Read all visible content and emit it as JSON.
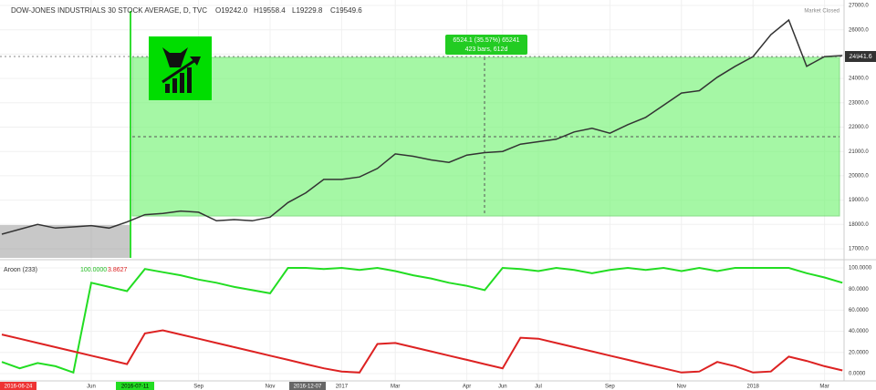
{
  "chart_data": [
    {
      "type": "line",
      "title": "DOW-JONES INDUSTRIALS 30 STOCK AVERAGE, D, TVC",
      "ohlc_labels": [
        "O19242.0",
        "H19558.4",
        "L19229.8",
        "C19549.6"
      ],
      "status": "Market Closed",
      "last_price_label": "24941.6",
      "measure_labels": [
        "6524.1 (35.57%) 65241",
        "423 bars, 612d"
      ],
      "series": [
        {
          "color": "#333333",
          "values": [
            17600,
            17800,
            18000,
            17850,
            17900,
            17950,
            17850,
            18100,
            18400,
            18450,
            18550,
            18500,
            18150,
            18200,
            18150,
            18300,
            18900,
            19300,
            19850,
            19850,
            19950,
            20300,
            20900,
            20800,
            20650,
            20550,
            20850,
            20950,
            21000,
            21300,
            21400,
            21500,
            21800,
            21950,
            21750,
            22100,
            22400,
            22900,
            23400,
            23500,
            24050,
            24500,
            24900,
            25800,
            26400,
            24500,
            24900,
            24940
          ]
        }
      ],
      "ylim": [
        16625,
        27225
      ],
      "yticks": [
        {
          "value": 17000,
          "label": "17000.0"
        },
        {
          "value": 18000,
          "label": "18000.0"
        },
        {
          "value": 19000,
          "label": "19000.0"
        },
        {
          "value": 20000,
          "label": "20000.0"
        },
        {
          "value": 21000,
          "label": "21000.0"
        },
        {
          "value": 22000,
          "label": "22000.0"
        },
        {
          "value": 23000,
          "label": "23000.0"
        },
        {
          "value": 24000,
          "label": "24000.0"
        },
        {
          "value": 25000,
          "label": "25000.0"
        },
        {
          "value": 26000,
          "label": "26000.0"
        },
        {
          "value": 27000,
          "label": "27000.0"
        }
      ]
    },
    {
      "type": "line",
      "title": "Aroon (233)",
      "legend_values": [
        "100.0000",
        "3.8627"
      ],
      "categories": [
        null,
        null,
        null,
        null,
        null,
        "Jun",
        null,
        null,
        null,
        null,
        null,
        "Sep",
        null,
        null,
        null,
        "Nov",
        null,
        null,
        null,
        "2017",
        null,
        null,
        "Mar",
        null,
        null,
        null,
        "Apr",
        null,
        "Jun",
        null,
        "Jul",
        null,
        null,
        null,
        "Sep",
        null,
        null,
        null,
        "Nov",
        null,
        null,
        null,
        "2018",
        null,
        null,
        null,
        "Mar",
        null
      ],
      "axis_badges": [
        "2016-06-24",
        "2016-07-11",
        "2016-12-07"
      ],
      "series": [
        {
          "color": "#22dd22",
          "values": [
            11,
            5,
            10,
            7,
            1,
            86,
            82,
            78,
            99,
            96,
            93,
            89,
            86,
            82,
            79,
            76,
            100,
            100,
            99,
            100,
            98,
            100,
            97,
            93,
            90,
            86,
            83,
            79,
            100,
            99,
            97,
            100,
            98,
            95,
            98,
            100,
            98,
            100,
            97,
            100,
            97,
            100,
            100,
            100,
            100,
            95,
            91,
            86
          ]
        },
        {
          "color": "#dd2222",
          "values": [
            37,
            33,
            29,
            25,
            21,
            17,
            13,
            9,
            38,
            41,
            37,
            33,
            29,
            25,
            21,
            17,
            13,
            9,
            5,
            2,
            1,
            28,
            29,
            25,
            21,
            17,
            13,
            9,
            5,
            34,
            33,
            29,
            25,
            21,
            17,
            13,
            9,
            5,
            1,
            2,
            11,
            7,
            1,
            2,
            16,
            12,
            7,
            3
          ]
        }
      ],
      "ylim": [
        -6.9,
        105.2
      ],
      "yticks": [
        {
          "value": 0,
          "label": "0.0000"
        },
        {
          "value": 20,
          "label": "20.0000"
        },
        {
          "value": 40,
          "label": "40.0000"
        },
        {
          "value": 60,
          "label": "60.0000"
        },
        {
          "value": 80,
          "label": "80.0000"
        },
        {
          "value": 100,
          "label": "100.0000"
        }
      ]
    }
  ]
}
